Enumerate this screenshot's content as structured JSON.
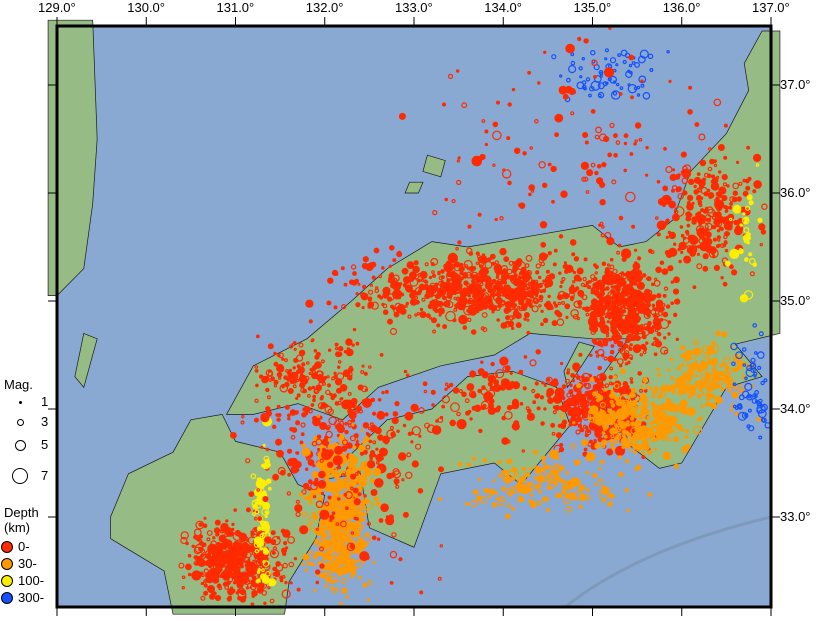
{
  "map": {
    "lon_range": [
      129.0,
      137.0
    ],
    "lat_range": [
      32.17,
      37.52
    ],
    "lon_ticks": [
      "129.0°",
      "130.0°",
      "131.0°",
      "132.0°",
      "133.0°",
      "134.0°",
      "135.0°",
      "136.0°",
      "137.0°"
    ],
    "lat_ticks": [
      "37.0°",
      "36.0°",
      "35.0°",
      "34.0°",
      "33.0°"
    ],
    "colors": {
      "sea": "#89a8d2",
      "land": "#97bb84",
      "coast": "#1a1a1a",
      "trench": "#7f99b8"
    }
  },
  "legend": {
    "mag_title": "Mag.",
    "mag_items": [
      "1",
      "3",
      "5",
      "7"
    ],
    "depth_title": "Depth",
    "depth_unit": "(km)",
    "depth_items": [
      {
        "label": "0-",
        "color": "#ff2a00"
      },
      {
        "label": "30-",
        "color": "#ff9900"
      },
      {
        "label": "100-",
        "color": "#ffee00"
      },
      {
        "label": "300-",
        "color": "#1450ff"
      }
    ]
  }
}
